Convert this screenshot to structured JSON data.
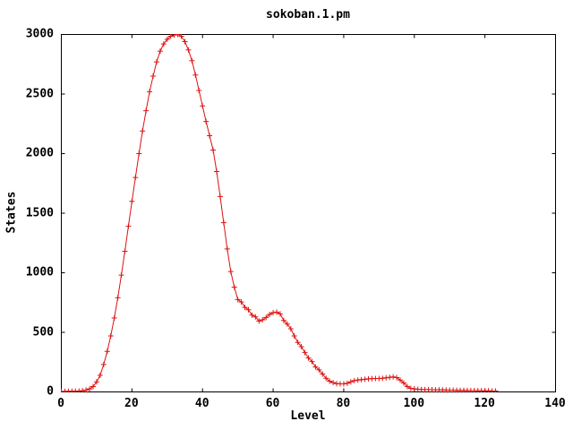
{
  "chart_data": {
    "type": "line",
    "title": "sokoban.1.pm",
    "xlabel": "Level",
    "ylabel": "States",
    "xlim": [
      0,
      140
    ],
    "ylim": [
      0,
      3000
    ],
    "x_ticks": [
      0,
      20,
      40,
      60,
      80,
      100,
      120,
      140
    ],
    "y_ticks": [
      0,
      500,
      1000,
      1500,
      2000,
      2500,
      3000
    ],
    "grid": false,
    "legend": "none",
    "marker": "plus",
    "line_color": "#dd1111",
    "axis_color": "#000000",
    "background_color": "#ffffff",
    "series_name": "sokoban.1.pm",
    "x_start": 0,
    "x_step": 1,
    "x_end": 123,
    "values": [
      5,
      5,
      6,
      6,
      7,
      8,
      10,
      16,
      25,
      45,
      85,
      140,
      230,
      340,
      470,
      620,
      790,
      980,
      1180,
      1390,
      1600,
      1800,
      2000,
      2190,
      2360,
      2520,
      2650,
      2770,
      2860,
      2920,
      2960,
      2985,
      2995,
      3000,
      2985,
      2940,
      2870,
      2780,
      2660,
      2530,
      2400,
      2270,
      2150,
      2030,
      1850,
      1640,
      1420,
      1200,
      1010,
      880,
      775,
      755,
      710,
      690,
      645,
      630,
      595,
      605,
      625,
      650,
      665,
      670,
      655,
      600,
      570,
      530,
      470,
      415,
      380,
      330,
      285,
      255,
      210,
      185,
      150,
      115,
      90,
      78,
      70,
      68,
      68,
      72,
      85,
      95,
      100,
      103,
      106,
      110,
      112,
      113,
      113,
      115,
      118,
      122,
      126,
      120,
      100,
      75,
      45,
      30,
      25,
      23,
      21,
      20,
      20,
      19,
      18,
      18,
      17,
      16,
      15,
      15,
      14,
      13,
      13,
      12,
      11,
      11,
      10,
      10,
      9,
      9,
      8,
      8
    ]
  }
}
